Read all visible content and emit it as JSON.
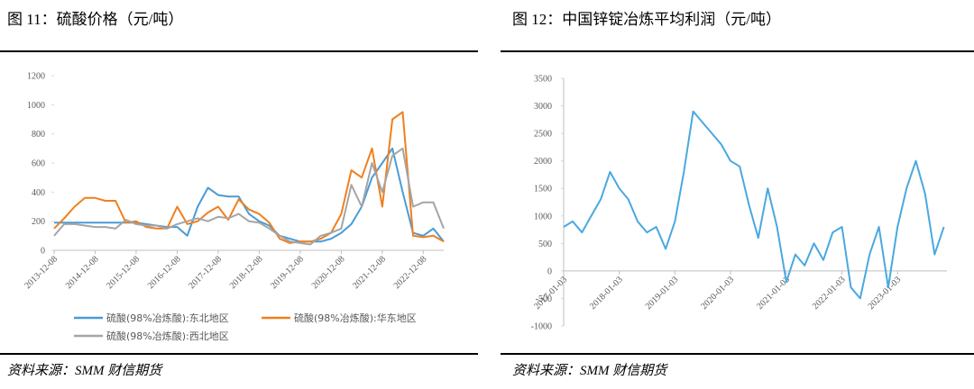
{
  "chart_data": [
    {
      "type": "line",
      "title": "图 11：硫酸价格（元/吨）",
      "source": "资料来源：SMM 财信期货",
      "x": [
        "2013-12-08",
        "2014-03-08",
        "2014-06-08",
        "2014-09-08",
        "2014-12-08",
        "2015-03-08",
        "2015-06-08",
        "2015-09-08",
        "2015-12-08",
        "2016-03-08",
        "2016-06-08",
        "2016-09-08",
        "2016-12-08",
        "2017-03-08",
        "2017-06-08",
        "2017-09-08",
        "2017-12-08",
        "2018-03-08",
        "2018-06-08",
        "2018-09-08",
        "2018-12-08",
        "2019-03-08",
        "2019-06-08",
        "2019-09-08",
        "2019-12-08",
        "2020-03-08",
        "2020-06-08",
        "2020-09-08",
        "2020-12-08",
        "2021-03-08",
        "2021-06-08",
        "2021-09-08",
        "2021-12-08",
        "2022-03-08",
        "2022-06-08",
        "2022-09-08",
        "2022-12-08",
        "2023-03-08",
        "2023-06-08"
      ],
      "series": [
        {
          "name": "硫酸(98%冶炼酸):东北地区",
          "color": "#4a9bd6",
          "values": [
            190,
            190,
            190,
            190,
            190,
            190,
            190,
            190,
            190,
            180,
            170,
            160,
            160,
            100,
            300,
            430,
            380,
            370,
            370,
            250,
            200,
            170,
            100,
            80,
            60,
            60,
            60,
            80,
            120,
            180,
            300,
            500,
            600,
            700,
            400,
            120,
            100,
            150,
            60
          ]
        },
        {
          "name": "硫酸(98%冶炼酸):华东地区",
          "color": "#f07f1e",
          "values": [
            150,
            220,
            300,
            360,
            360,
            340,
            340,
            190,
            200,
            160,
            150,
            150,
            300,
            180,
            200,
            260,
            300,
            210,
            350,
            280,
            250,
            190,
            80,
            50,
            60,
            60,
            80,
            120,
            250,
            550,
            500,
            700,
            300,
            900,
            950,
            100,
            90,
            100,
            60
          ]
        },
        {
          "name": "硫酸(98%冶炼酸):西北地区",
          "color": "#a5a5a5",
          "values": [
            100,
            180,
            180,
            170,
            160,
            160,
            150,
            210,
            180,
            170,
            170,
            150,
            180,
            200,
            220,
            200,
            230,
            220,
            250,
            200,
            190,
            150,
            100,
            60,
            50,
            40,
            100,
            120,
            150,
            450,
            300,
            600,
            400,
            650,
            700,
            300,
            330,
            330,
            150
          ]
        }
      ],
      "xlim": [
        "2013-12-08",
        "2023-06-08"
      ],
      "xticks": [
        "2013-12-08",
        "2014-12-08",
        "2015-12-08",
        "2016-12-08",
        "2017-12-08",
        "2018-12-08",
        "2019-12-08",
        "2020-12-08",
        "2021-12-08",
        "2022-12-08"
      ],
      "ylim": [
        0,
        1200
      ],
      "yticks": [
        0,
        200,
        400,
        600,
        800,
        1000,
        1200
      ],
      "legend": "bottom"
    },
    {
      "type": "line",
      "title": "图 12：中国锌锭冶炼平均利润（元/吨）",
      "source": "资料来源：SMM 财信期货",
      "x": [
        "2017-01-03",
        "2017-03-03",
        "2017-05-03",
        "2017-07-03",
        "2017-09-03",
        "2017-11-03",
        "2018-01-03",
        "2018-03-03",
        "2018-05-03",
        "2018-07-03",
        "2018-09-03",
        "2018-11-03",
        "2019-01-03",
        "2019-03-03",
        "2019-05-03",
        "2019-07-03",
        "2019-09-03",
        "2019-11-03",
        "2020-01-03",
        "2020-03-03",
        "2020-05-03",
        "2020-07-03",
        "2020-09-03",
        "2020-11-03",
        "2021-01-03",
        "2021-03-03",
        "2021-05-03",
        "2021-07-03",
        "2021-09-03",
        "2021-11-03",
        "2022-01-03",
        "2022-03-03",
        "2022-05-03",
        "2022-07-03",
        "2022-09-03",
        "2022-11-03",
        "2023-01-03",
        "2023-03-03",
        "2023-05-03",
        "2023-07-03",
        "2023-09-03",
        "2023-11-03"
      ],
      "series": [
        {
          "color": "#4aa8e0",
          "values": [
            800,
            900,
            700,
            1000,
            1300,
            1800,
            1500,
            1300,
            900,
            700,
            800,
            400,
            900,
            1800,
            2900,
            2700,
            2500,
            2300,
            2000,
            1900,
            1200,
            600,
            1500,
            800,
            -200,
            300,
            100,
            500,
            200,
            700,
            800,
            -300,
            -500,
            300,
            800,
            -300,
            800,
            1500,
            2000,
            1400,
            300,
            800
          ]
        }
      ],
      "xlim": [
        "2017-01-03",
        "2023-11-23"
      ],
      "xticks": [
        "2017-01-03",
        "2018-01-03",
        "2019-01-03",
        "2020-01-03",
        "2021-01-03",
        "2022-01-03",
        "2023-01-03"
      ],
      "ylim": [
        -1000,
        3500
      ],
      "yticks": [
        -1000,
        -500,
        0,
        500,
        1000,
        1500,
        2000,
        2500,
        3000,
        3500
      ]
    }
  ]
}
